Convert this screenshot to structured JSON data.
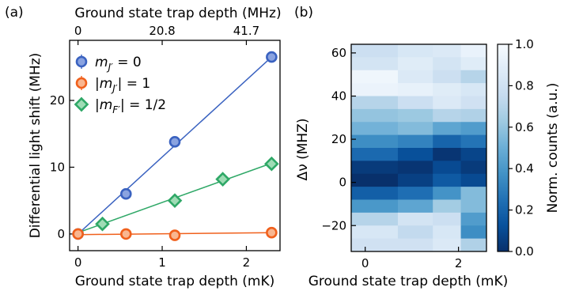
{
  "chart_data": [
    {
      "panel_label": "(a)",
      "type": "scatter",
      "xlabel": "Ground state trap depth (mK)",
      "ylabel": "Differential light shift (MHz)",
      "top_xlabel": "Ground state trap depth (MHz)",
      "xlim": [
        -0.1,
        2.4
      ],
      "ylim": [
        -2.5,
        29
      ],
      "x_ticks": [
        0,
        1,
        2
      ],
      "y_ticks": [
        0,
        10,
        20
      ],
      "top_ticks": [
        {
          "x": 0,
          "label": "0"
        },
        {
          "x": 1.0,
          "label": "20.8"
        },
        {
          "x": 2.0,
          "label": "41.7"
        }
      ],
      "legend_position": "top-left",
      "series": [
        {
          "name": "m_J′ = 0",
          "color": "#3a62c0",
          "fill": "#8aa3e0",
          "marker": "circle",
          "x": [
            0,
            0.57,
            1.15,
            2.3
          ],
          "y": [
            0,
            6.0,
            13.8,
            26.5
          ],
          "fit": {
            "x": [
              0,
              2.3
            ],
            "y": [
              0,
              26.5
            ]
          }
        },
        {
          "name": "|m_J′| = 1",
          "color": "#f0601c",
          "fill": "#f9b690",
          "marker": "circle",
          "x": [
            0,
            0.57,
            1.15,
            2.3
          ],
          "y": [
            0,
            0,
            -0.2,
            0.2
          ],
          "fit": {
            "x": [
              0,
              2.3
            ],
            "y": [
              -0.1,
              0.2
            ]
          }
        },
        {
          "name": "|m_F′| = 1/2",
          "color": "#2fa867",
          "fill": "#9fdcb5",
          "marker": "diamond",
          "x": [
            0.29,
            1.15,
            1.72,
            2.3
          ],
          "y": [
            1.5,
            5.0,
            8.2,
            10.5
          ],
          "fit": {
            "x": [
              0,
              2.3
            ],
            "y": [
              0.2,
              10.6
            ]
          }
        }
      ]
    },
    {
      "panel_label": "(b)",
      "type": "heatmap",
      "xlabel": "Ground state trap depth (mK)",
      "ylabel": "Δν (MHZ)",
      "colorbar_label": "Norm. counts (a.u.)",
      "colorbar_ticks": [
        0.0,
        0.2,
        0.4,
        0.6,
        0.8,
        1.0
      ],
      "colorbar_tick_labels": [
        "0.0",
        "0.2",
        "0.4",
        "0.6",
        "0.8",
        "1.0"
      ],
      "x_ticks": [
        0,
        2
      ],
      "y_ticks": [
        -20,
        0,
        20,
        40,
        60
      ],
      "y_tick_labels": [
        "−20",
        "0",
        "20",
        "40",
        "60"
      ],
      "xlim": [
        -0.3,
        2.6
      ],
      "ylim": [
        -32,
        64
      ],
      "x_bin_edges": [
        -0.3,
        0.7,
        1.45,
        2.05,
        2.6
      ],
      "y_bin_start": 64,
      "y_bin_step": -6,
      "colormap": [
        "#08306b",
        "#08519c",
        "#2171b5",
        "#4292c6",
        "#6baed6",
        "#9ecae1",
        "#c6dbef",
        "#deebf7",
        "#f7fbff"
      ],
      "values": [
        [
          0.78,
          0.84,
          0.86,
          0.93
        ],
        [
          0.82,
          0.88,
          0.82,
          0.88
        ],
        [
          0.96,
          0.86,
          0.78,
          0.7
        ],
        [
          0.94,
          0.92,
          0.88,
          0.84
        ],
        [
          0.7,
          0.78,
          0.86,
          0.8
        ],
        [
          0.6,
          0.62,
          0.7,
          0.68
        ],
        [
          0.52,
          0.56,
          0.46,
          0.42
        ],
        [
          0.36,
          0.32,
          0.2,
          0.26
        ],
        [
          0.22,
          0.12,
          0.02,
          0.08
        ],
        [
          0.04,
          0.02,
          0.1,
          0.04
        ],
        [
          0.0,
          0.06,
          0.16,
          0.1
        ],
        [
          0.18,
          0.24,
          0.38,
          0.56
        ],
        [
          0.4,
          0.46,
          0.64,
          0.56
        ],
        [
          0.7,
          0.82,
          0.78,
          0.42
        ],
        [
          0.84,
          0.74,
          0.84,
          0.36
        ],
        [
          0.8,
          0.8,
          0.86,
          0.68
        ]
      ]
    }
  ]
}
